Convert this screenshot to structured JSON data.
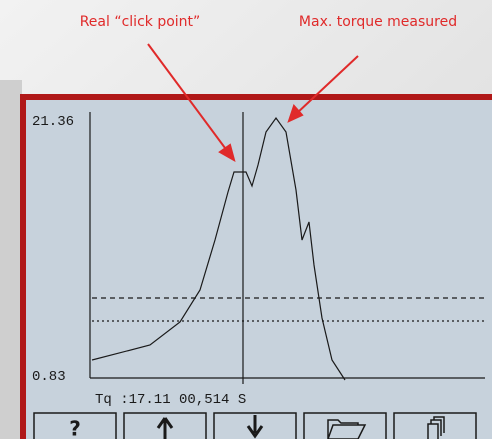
{
  "annotations": {
    "click_point": "Real “click point”",
    "max_torque": "Max. torque measured"
  },
  "screen": {
    "y_max_label": "21.36",
    "y_min_label": "0.83",
    "readout": "Tq :17.11 00,514 S",
    "buttons": [
      "?"
    ]
  }
}
